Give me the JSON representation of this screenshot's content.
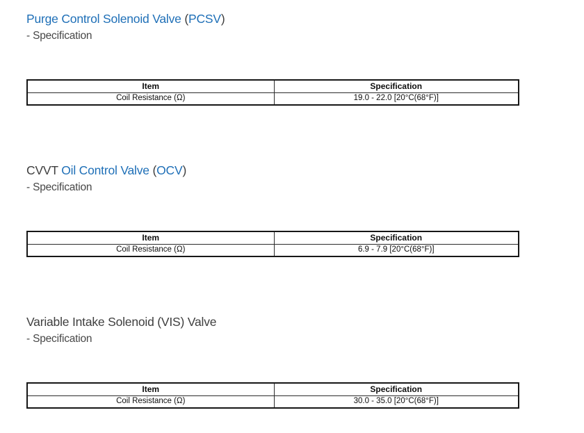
{
  "colors": {
    "link_blue": "#1e6fb7",
    "heading_dark": "#3e3e3e",
    "table_border": "#161616"
  },
  "sections": [
    {
      "title_parts": [
        {
          "text": "Purge Control Solenoid Valve",
          "style": "link"
        },
        {
          "text": " (",
          "style": "plain"
        },
        {
          "text": "PCSV",
          "style": "link"
        },
        {
          "text": ")",
          "style": "plain"
        }
      ],
      "subtitle": "- Specification",
      "table": {
        "headers": [
          "Item",
          "Specification"
        ],
        "rows": [
          [
            "Coil Resistance (Ω)",
            "19.0 - 22.0 [20°C(68°F)]"
          ]
        ]
      }
    },
    {
      "title_parts": [
        {
          "text": "CVVT ",
          "style": "plain"
        },
        {
          "text": "Oil Control Valve",
          "style": "link"
        },
        {
          "text": " (",
          "style": "plain"
        },
        {
          "text": "OCV",
          "style": "link"
        },
        {
          "text": ")",
          "style": "plain"
        }
      ],
      "subtitle": "- Specification",
      "table": {
        "headers": [
          "Item",
          "Specification"
        ],
        "rows": [
          [
            "Coil Resistance (Ω)",
            "6.9 - 7.9 [20°C(68°F)]"
          ]
        ]
      }
    },
    {
      "title_parts": [
        {
          "text": "Variable Intake Solenoid (VIS) Valve",
          "style": "plain"
        }
      ],
      "subtitle": "- Specification",
      "table": {
        "headers": [
          "Item",
          "Specification"
        ],
        "rows": [
          [
            "Coil Resistance (Ω)",
            "30.0 - 35.0 [20°C(68°F)]"
          ]
        ]
      }
    }
  ]
}
